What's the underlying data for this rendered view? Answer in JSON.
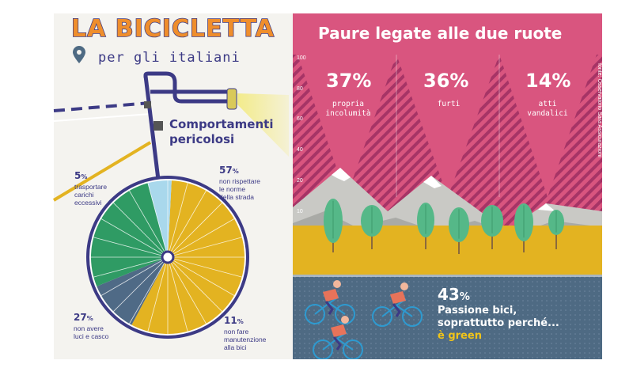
{
  "left": {
    "title": "LA BICICLETTA",
    "subtitle": "per gli italiani",
    "comportamenti_line1": "Comportamenti",
    "comportamenti_line2": "pericolosi",
    "slices": [
      {
        "pct_num": "57",
        "pct_sym": "%",
        "text": [
          "non rispettare",
          "le norme",
          "della strada"
        ],
        "value": 57,
        "color": "#e3b321"
      },
      {
        "pct_num": "11",
        "pct_sym": "%",
        "text": [
          "non fare",
          "manutenzione",
          "alla bici"
        ],
        "value": 11,
        "color": "#4f6a86"
      },
      {
        "pct_num": "27",
        "pct_sym": "%",
        "text": [
          "non avere",
          "luci e casco"
        ],
        "value": 27,
        "color": "#2f9b64"
      },
      {
        "pct_num": "5",
        "pct_sym": "%",
        "text": [
          "trasportare",
          "carichi",
          "eccessivi"
        ],
        "value": 5,
        "color": "#a9d8ec"
      }
    ]
  },
  "right": {
    "title": "Paure legate alle due ruote",
    "y_ticks": [
      "100",
      "80",
      "60",
      "40",
      "20",
      "10"
    ],
    "source": "fonte: Osservatorio Sara Assicurazioni",
    "fears": [
      {
        "pct": "37%",
        "label_line1": "propria",
        "label_line2": "incolumità",
        "value": 37
      },
      {
        "pct": "36%",
        "label_line1": "furti",
        "label_line2": "",
        "value": 36
      },
      {
        "pct": "14%",
        "label_line1": "atti",
        "label_line2": "vandalici",
        "value": 14
      }
    ],
    "passion": {
      "pct_num": "43",
      "pct_sym": "%",
      "line1": "Passione bici,",
      "line2": "soprattutto perché...",
      "line3": "è green"
    }
  },
  "colors": {
    "navy": "#3c3a85",
    "orange": "#ef8e2c",
    "pink": "#d9557f",
    "pink_stripe": "#a63466",
    "yellow": "#e3b321",
    "slate": "#4e6a83",
    "green": "#2f9b64"
  },
  "icons": [
    "location-pin-icon",
    "cyclist-icon",
    "tree-icon",
    "mountain-icon"
  ]
}
